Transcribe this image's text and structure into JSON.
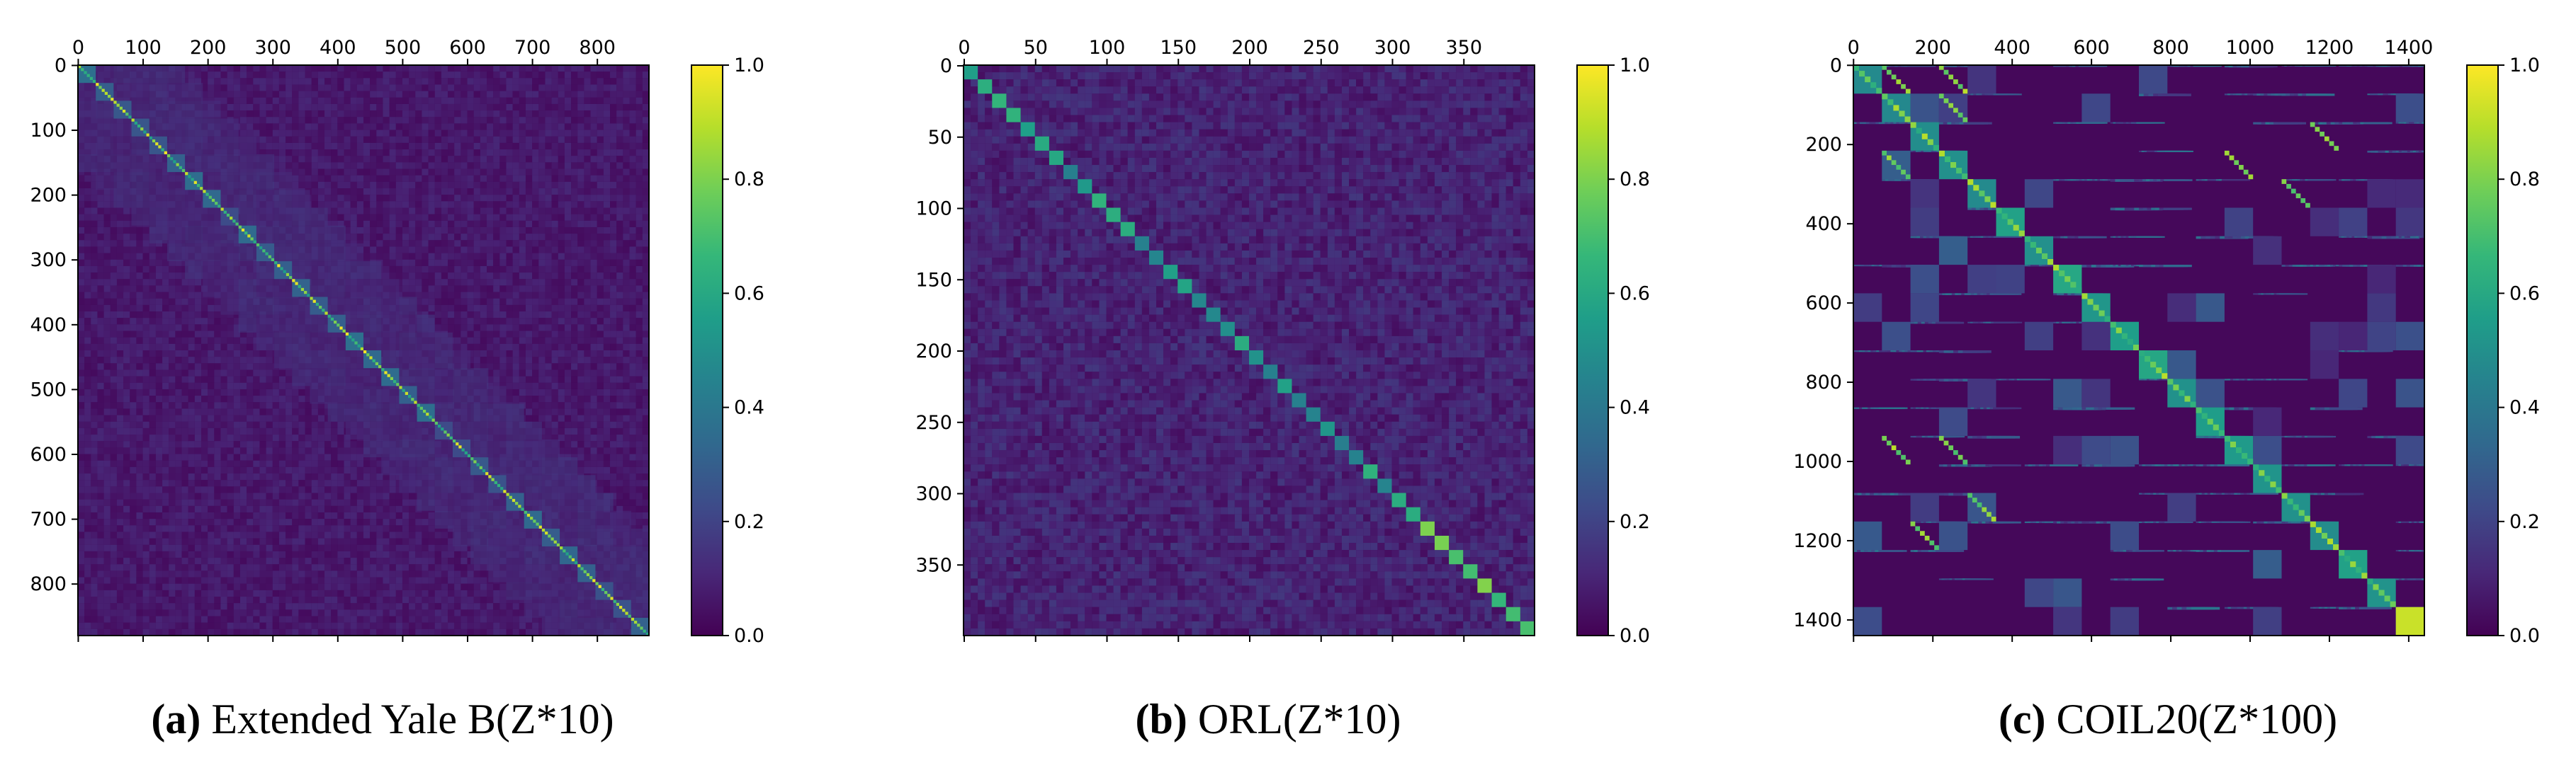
{
  "chart_data": [
    {
      "type": "heatmap",
      "panel_tag": "a",
      "title": "Extended Yale B(Z*10)",
      "n": 880,
      "x_ticks": [
        0,
        100,
        200,
        300,
        400,
        500,
        600,
        700,
        800
      ],
      "y_ticks": [
        0,
        100,
        200,
        300,
        400,
        500,
        600,
        700,
        800
      ],
      "blocks": 32,
      "colorbar": {
        "min": 0.0,
        "max": 1.0,
        "ticks": [
          "0.0",
          "0.2",
          "0.4",
          "0.6",
          "0.8",
          "1.0"
        ]
      },
      "colormap": "viridis"
    },
    {
      "type": "heatmap",
      "panel_tag": "b",
      "title": "ORL(Z*10)",
      "n": 400,
      "x_ticks": [
        0,
        50,
        100,
        150,
        200,
        250,
        300,
        350
      ],
      "y_ticks": [
        0,
        50,
        100,
        150,
        200,
        250,
        300,
        350
      ],
      "blocks": 40,
      "colorbar": {
        "min": 0.0,
        "max": 1.0,
        "ticks": [
          "0.0",
          "0.2",
          "0.4",
          "0.6",
          "0.8",
          "1.0"
        ]
      },
      "colormap": "viridis"
    },
    {
      "type": "heatmap",
      "panel_tag": "c",
      "title": "COIL20(Z*100)",
      "n": 1440,
      "x_ticks": [
        0,
        200,
        400,
        600,
        800,
        1000,
        1200,
        1400
      ],
      "y_ticks": [
        0,
        200,
        400,
        600,
        800,
        1000,
        1200,
        1400
      ],
      "blocks": 20,
      "colorbar": {
        "min": 0.0,
        "max": 1.0,
        "ticks": [
          "0.0",
          "0.2",
          "0.4",
          "0.6",
          "0.8",
          "1.0"
        ]
      },
      "colormap": "viridis"
    }
  ],
  "captions": [
    {
      "tag": "(a)",
      "text": " Extended Yale B(Z*10)"
    },
    {
      "tag": "(b)",
      "text": " ORL(Z*10)"
    },
    {
      "tag": "(c)",
      "text": " COIL20(Z*100)"
    }
  ]
}
